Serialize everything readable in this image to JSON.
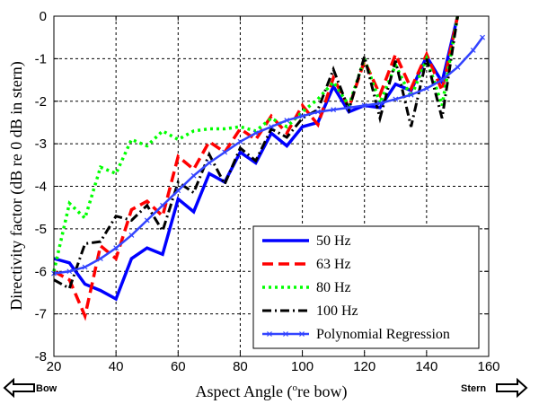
{
  "chart_data": {
    "type": "line",
    "xlabel": "Aspect Angle (",
    "xlabel_sup": "o",
    "xlabel_suffix": "re bow)",
    "ylabel": "Directivity factor (dB re 0 dB in stern)",
    "xlim": [
      20,
      160
    ],
    "ylim": [
      -8,
      0
    ],
    "xticks": [
      20,
      40,
      60,
      80,
      100,
      120,
      140,
      160
    ],
    "yticks": [
      0,
      -1,
      -2,
      -3,
      -4,
      -5,
      -6,
      -7,
      -8
    ],
    "grid": true,
    "legend_position": "bottom-right",
    "series": [
      {
        "name": "50 Hz",
        "color": "#0000ff",
        "style": "solid",
        "points": [
          [
            20,
            -5.7
          ],
          [
            25,
            -5.8
          ],
          [
            30,
            -6.3
          ],
          [
            35,
            -6.45
          ],
          [
            40,
            -6.65
          ],
          [
            45,
            -5.7
          ],
          [
            50,
            -5.45
          ],
          [
            55,
            -5.6
          ],
          [
            60,
            -4.3
          ],
          [
            65,
            -4.6
          ],
          [
            70,
            -3.7
          ],
          [
            75,
            -3.9
          ],
          [
            80,
            -3.2
          ],
          [
            85,
            -3.45
          ],
          [
            90,
            -2.75
          ],
          [
            95,
            -3.05
          ],
          [
            100,
            -2.6
          ],
          [
            105,
            -2.5
          ],
          [
            110,
            -1.65
          ],
          [
            115,
            -2.25
          ],
          [
            120,
            -2.1
          ],
          [
            125,
            -2.15
          ],
          [
            130,
            -1.6
          ],
          [
            135,
            -1.75
          ],
          [
            140,
            -0.95
          ],
          [
            145,
            -1.55
          ],
          [
            150,
            0.0
          ]
        ]
      },
      {
        "name": "63 Hz",
        "color": "#ff0000",
        "style": "dashed",
        "points": [
          [
            20,
            -6.0
          ],
          [
            25,
            -6.2
          ],
          [
            30,
            -7.05
          ],
          [
            35,
            -5.4
          ],
          [
            40,
            -5.7
          ],
          [
            45,
            -4.55
          ],
          [
            50,
            -4.35
          ],
          [
            55,
            -4.7
          ],
          [
            60,
            -3.3
          ],
          [
            65,
            -3.6
          ],
          [
            70,
            -2.95
          ],
          [
            75,
            -3.2
          ],
          [
            80,
            -2.65
          ],
          [
            85,
            -2.9
          ],
          [
            90,
            -2.35
          ],
          [
            95,
            -2.75
          ],
          [
            100,
            -2.1
          ],
          [
            105,
            -2.55
          ],
          [
            110,
            -1.45
          ],
          [
            115,
            -2.15
          ],
          [
            120,
            -1.05
          ],
          [
            125,
            -1.85
          ],
          [
            130,
            -0.9
          ],
          [
            135,
            -1.7
          ],
          [
            140,
            -0.9
          ],
          [
            145,
            -1.75
          ],
          [
            150,
            0.0
          ]
        ]
      },
      {
        "name": "80 Hz",
        "color": "#00ff00",
        "style": "dotted",
        "points": [
          [
            20,
            -6.0
          ],
          [
            25,
            -4.4
          ],
          [
            30,
            -4.75
          ],
          [
            35,
            -3.55
          ],
          [
            40,
            -3.7
          ],
          [
            45,
            -2.9
          ],
          [
            50,
            -3.05
          ],
          [
            55,
            -2.7
          ],
          [
            60,
            -2.9
          ],
          [
            65,
            -2.7
          ],
          [
            70,
            -2.65
          ],
          [
            75,
            -2.65
          ],
          [
            80,
            -2.6
          ],
          [
            85,
            -2.7
          ],
          [
            90,
            -2.4
          ],
          [
            95,
            -2.6
          ],
          [
            100,
            -2.25
          ],
          [
            105,
            -1.95
          ],
          [
            110,
            -1.55
          ],
          [
            115,
            -2.1
          ],
          [
            120,
            -1.0
          ],
          [
            125,
            -2.05
          ],
          [
            130,
            -1.15
          ],
          [
            135,
            -1.9
          ],
          [
            140,
            -1.0
          ],
          [
            145,
            -2.1
          ],
          [
            150,
            0.0
          ]
        ]
      },
      {
        "name": "100 Hz",
        "color": "#000000",
        "style": "dashdot",
        "points": [
          [
            20,
            -6.2
          ],
          [
            25,
            -6.4
          ],
          [
            30,
            -5.35
          ],
          [
            35,
            -5.3
          ],
          [
            40,
            -4.7
          ],
          [
            45,
            -4.8
          ],
          [
            50,
            -4.45
          ],
          [
            55,
            -5.05
          ],
          [
            60,
            -3.9
          ],
          [
            65,
            -4.15
          ],
          [
            70,
            -3.25
          ],
          [
            75,
            -3.95
          ],
          [
            80,
            -3.1
          ],
          [
            85,
            -3.4
          ],
          [
            90,
            -2.65
          ],
          [
            95,
            -2.85
          ],
          [
            100,
            -2.4
          ],
          [
            105,
            -2.2
          ],
          [
            110,
            -1.25
          ],
          [
            115,
            -2.2
          ],
          [
            120,
            -0.95
          ],
          [
            125,
            -2.4
          ],
          [
            130,
            -1.05
          ],
          [
            135,
            -2.6
          ],
          [
            140,
            -1.0
          ],
          [
            145,
            -2.4
          ],
          [
            150,
            0.0
          ]
        ]
      },
      {
        "name": "Polynomial Regression",
        "color": "#3344ff",
        "style": "solid-markers",
        "points": [
          [
            20,
            -6.05
          ],
          [
            25,
            -6.0
          ],
          [
            30,
            -5.9
          ],
          [
            35,
            -5.7
          ],
          [
            40,
            -5.45
          ],
          [
            45,
            -5.15
          ],
          [
            50,
            -4.8
          ],
          [
            55,
            -4.45
          ],
          [
            60,
            -4.1
          ],
          [
            65,
            -3.75
          ],
          [
            70,
            -3.45
          ],
          [
            75,
            -3.2
          ],
          [
            80,
            -2.95
          ],
          [
            85,
            -2.75
          ],
          [
            90,
            -2.6
          ],
          [
            95,
            -2.45
          ],
          [
            100,
            -2.35
          ],
          [
            105,
            -2.25
          ],
          [
            110,
            -2.2
          ],
          [
            115,
            -2.15
          ],
          [
            120,
            -2.1
          ],
          [
            125,
            -2.05
          ],
          [
            130,
            -1.95
          ],
          [
            135,
            -1.85
          ],
          [
            140,
            -1.7
          ],
          [
            145,
            -1.5
          ],
          [
            150,
            -1.2
          ],
          [
            155,
            -0.8
          ],
          [
            158,
            -0.5
          ]
        ]
      }
    ]
  },
  "annotations": {
    "left_direction": "Bow",
    "right_direction": "Stern"
  }
}
